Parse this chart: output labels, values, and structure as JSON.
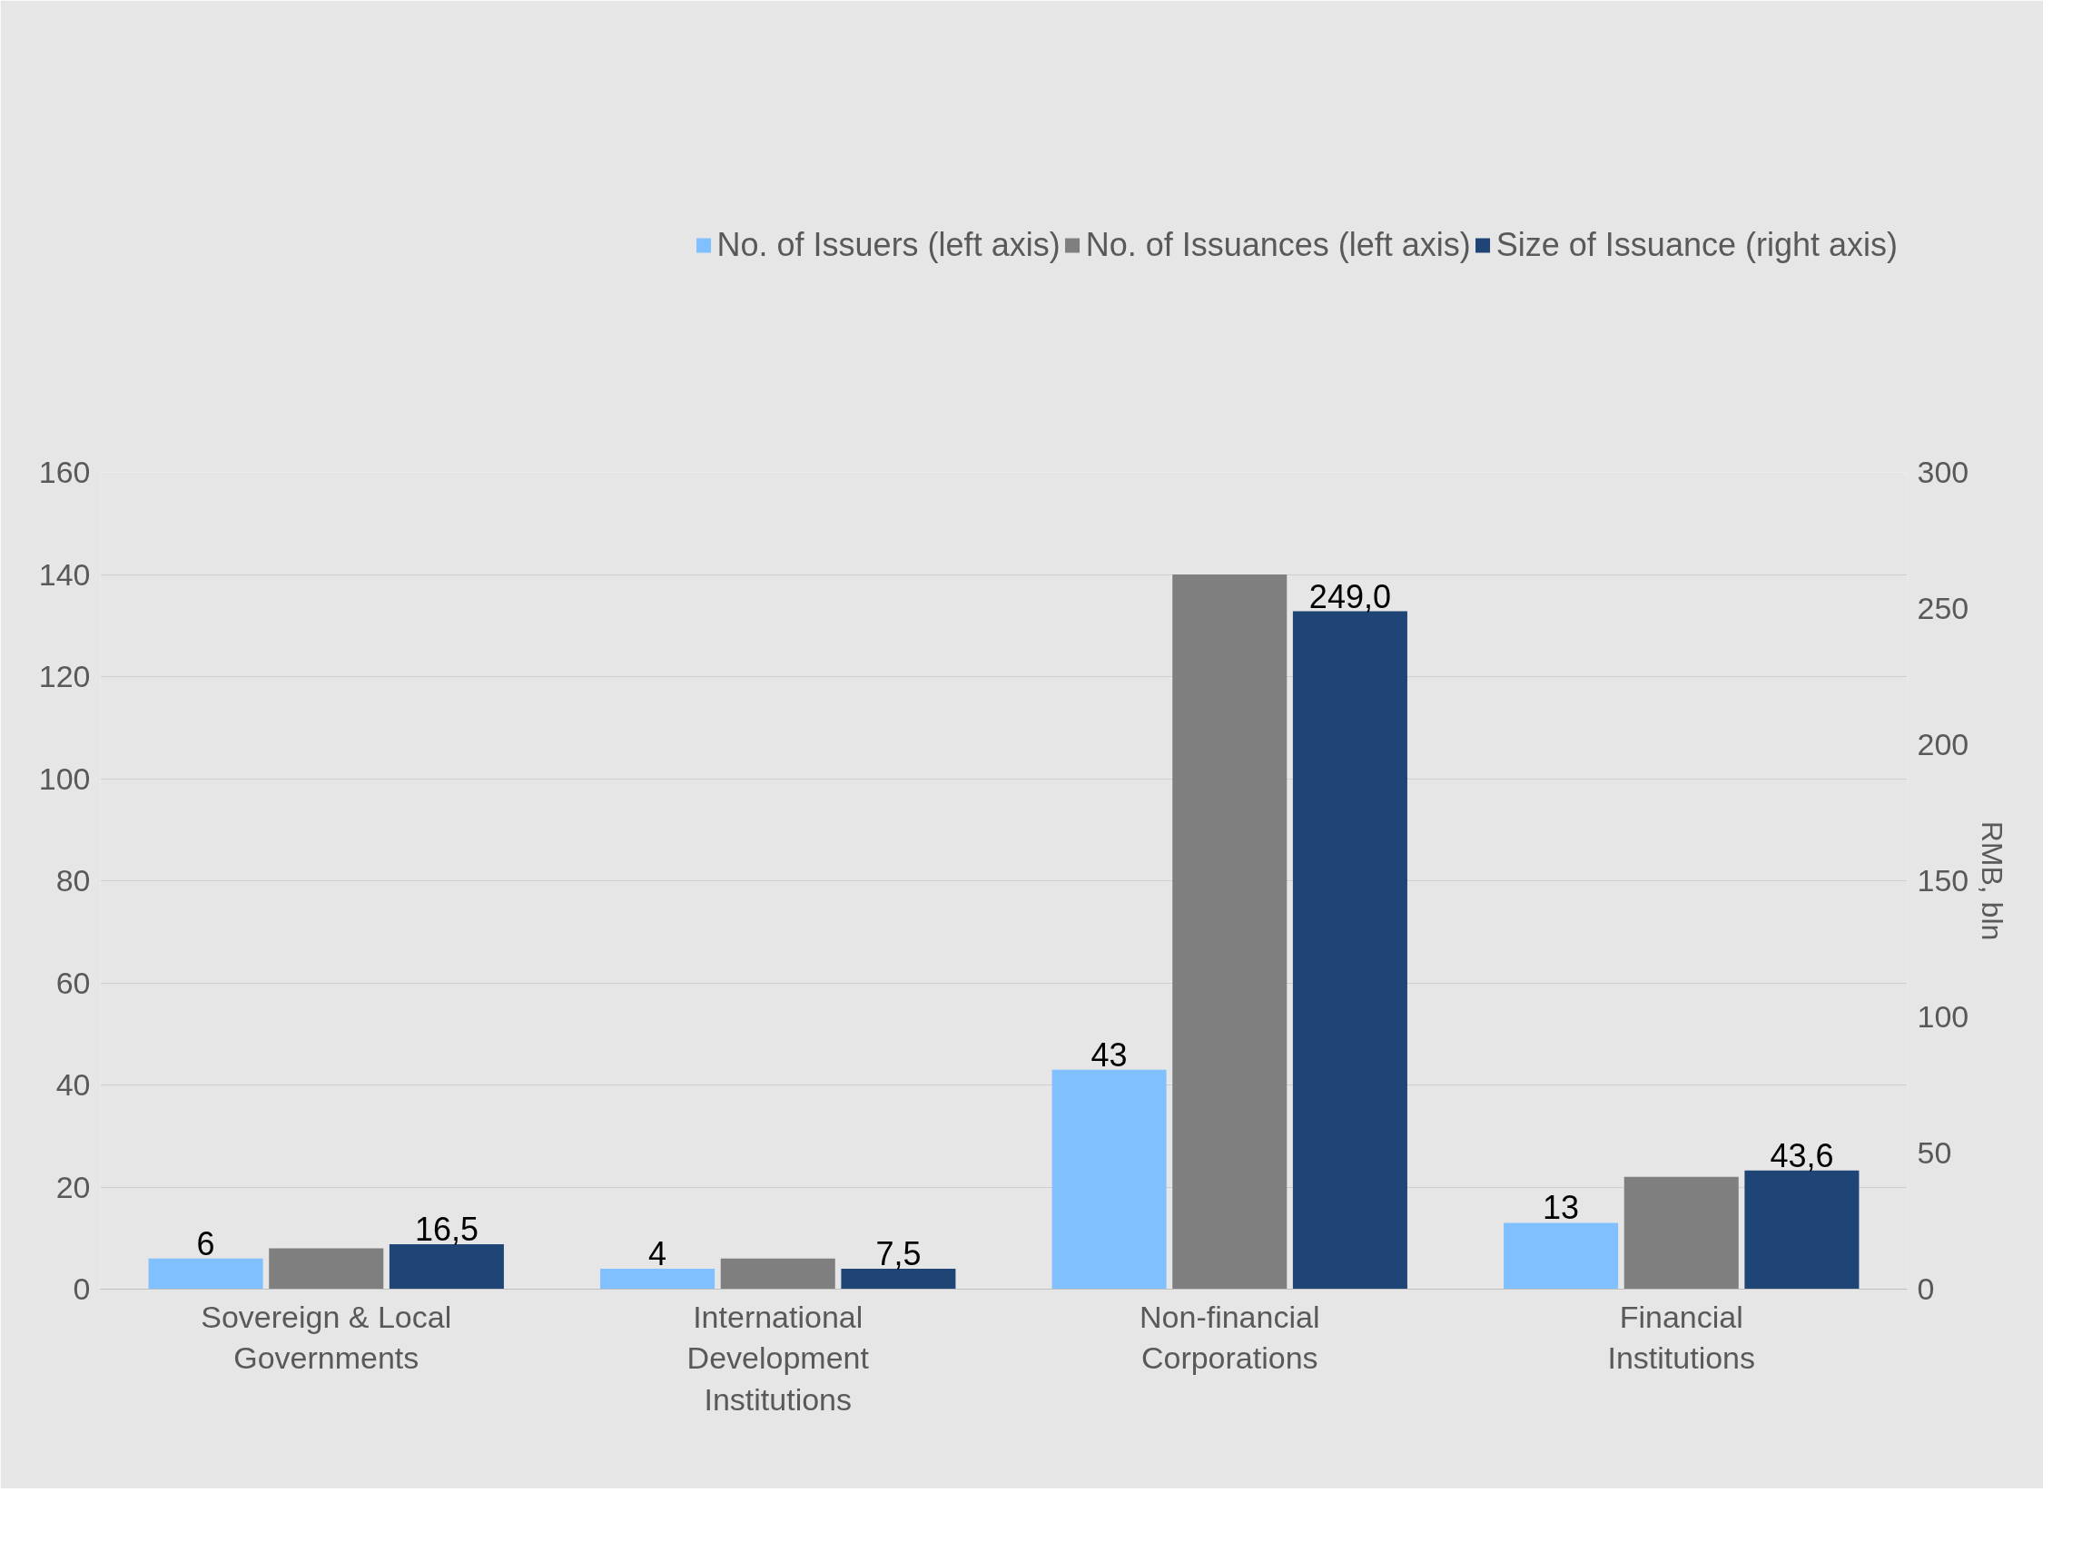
{
  "chart_data": {
    "type": "bar",
    "categories": [
      "Sovereign & Local Governments",
      "International Development Institutions",
      "Non-financial Corporations",
      "Financial Institutions"
    ],
    "series": [
      {
        "name": "No. of Issuers (left axis)",
        "color": "#80c0ff",
        "values": [
          6,
          4,
          43,
          13
        ],
        "value_labels": [
          "6",
          "4",
          "43",
          "13"
        ]
      },
      {
        "name": "No. of Issuances (left axis)",
        "color": "#7f7f7f",
        "values": [
          8,
          6,
          140,
          22
        ]
      },
      {
        "name": "Size of Issuance (right axis)",
        "color": "#1f4476",
        "axis": "y2",
        "values": [
          16.5,
          7.5,
          249.0,
          43.6
        ],
        "value_labels": [
          "16,5",
          "7,5",
          "249,0",
          "43,6"
        ]
      }
    ],
    "ylim": [
      0,
      160
    ],
    "yticks": [
      0,
      20,
      40,
      60,
      80,
      100,
      120,
      140,
      160
    ],
    "y2lim": [
      0,
      300
    ],
    "y2ticks": [
      0,
      50,
      100,
      150,
      200,
      250,
      300
    ],
    "y2label": "RMB, bln",
    "grid": "y",
    "legend": "top"
  }
}
